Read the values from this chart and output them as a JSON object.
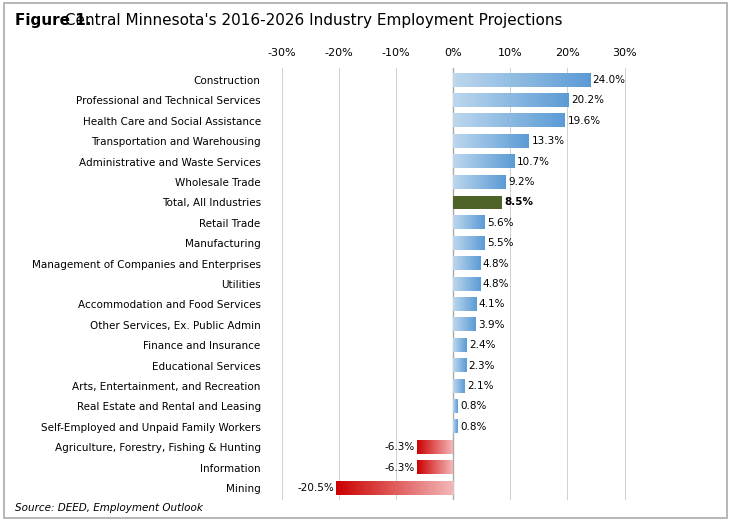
{
  "title_bold": "Figure 1.",
  "title_rest": " Central Minnesota's 2016-2026 Industry Employment Projections",
  "source": "Source: DEED, Employment Outlook",
  "categories": [
    "Mining",
    "Information",
    "Agriculture, Forestry, Fishing & Hunting",
    "Self-Employed and Unpaid Family Workers",
    "Real Estate and Rental and Leasing",
    "Arts, Entertainment, and Recreation",
    "Educational Services",
    "Finance and Insurance",
    "Other Services, Ex. Public Admin",
    "Accommodation and Food Services",
    "Utilities",
    "Management of Companies and Enterprises",
    "Manufacturing",
    "Retail Trade",
    "Total, All Industries",
    "Wholesale Trade",
    "Administrative and Waste Services",
    "Transportation and Warehousing",
    "Health Care and Social Assistance",
    "Professional and Technical Services",
    "Construction"
  ],
  "values": [
    -20.5,
    -6.3,
    -6.3,
    0.8,
    0.8,
    2.1,
    2.3,
    2.4,
    3.9,
    4.1,
    4.8,
    4.8,
    5.5,
    5.6,
    8.5,
    9.2,
    10.7,
    13.3,
    19.6,
    20.2,
    24.0
  ],
  "labels": [
    "-20.5%",
    "-6.3%",
    "-6.3%",
    "0.8%",
    "0.8%",
    "2.1%",
    "2.3%",
    "2.4%",
    "3.9%",
    "4.1%",
    "4.8%",
    "4.8%",
    "5.5%",
    "5.6%",
    "8.5%",
    "9.2%",
    "10.7%",
    "13.3%",
    "19.6%",
    "20.2%",
    "24.0%"
  ],
  "total_index": 14,
  "xlim": [
    -32,
    32
  ],
  "xticks": [
    -30,
    -20,
    -10,
    0,
    10,
    20,
    30
  ],
  "xticklabels": [
    "-30%",
    "-20%",
    "-10%",
    "0%",
    "10%",
    "20%",
    "30%"
  ],
  "bar_height": 0.65,
  "blue_light": "#bdd7ee",
  "blue_dark": "#2e75b6",
  "blue_mid": "#5b9bd5",
  "red_light": "#f4cccc",
  "red_dark": "#cc0000",
  "green_color": "#4f6228",
  "figure_bg": "#ffffff"
}
